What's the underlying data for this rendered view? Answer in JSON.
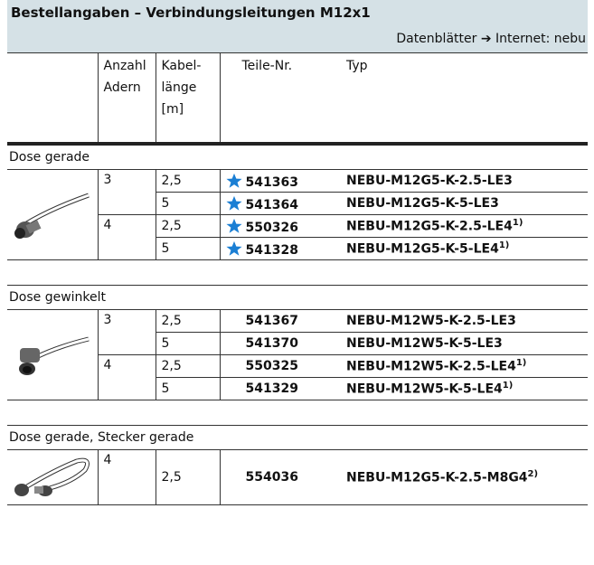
{
  "header": {
    "title": "Bestellangaben – Verbindungsleitungen M12x1",
    "note": "Datenblätter ➔ Internet: nebu"
  },
  "table": {
    "columns": [
      [
        "Anzahl",
        "Adern"
      ],
      [
        "Kabel-",
        "länge",
        "[m]"
      ],
      [
        "Teile-Nr."
      ],
      [
        "Typ"
      ]
    ],
    "sections": [
      {
        "title": "Dose gerade",
        "rows": [
          {
            "adern": "3",
            "laenge": "2,5",
            "star": true,
            "teile_nr": "541363",
            "typ": "NEBU-M12G5-K-2.5-LE3",
            "footnote": null
          },
          {
            "adern": null,
            "laenge": "5",
            "star": true,
            "teile_nr": "541364",
            "typ": "NEBU-M12G5-K-5-LE3",
            "footnote": null
          },
          {
            "adern": "4",
            "laenge": "2,5",
            "star": true,
            "teile_nr": "550326",
            "typ": "NEBU-M12G5-K-2.5-LE4",
            "footnote": "1)"
          },
          {
            "adern": null,
            "laenge": "5",
            "star": true,
            "teile_nr": "541328",
            "typ": "NEBU-M12G5-K-5-LE4",
            "footnote": "1)"
          }
        ]
      },
      {
        "title": "Dose gewinkelt",
        "rows": [
          {
            "adern": "3",
            "laenge": "2,5",
            "star": false,
            "teile_nr": "541367",
            "typ": "NEBU-M12W5-K-2.5-LE3",
            "footnote": null
          },
          {
            "adern": null,
            "laenge": "5",
            "star": false,
            "teile_nr": "541370",
            "typ": "NEBU-M12W5-K-5-LE3",
            "footnote": null
          },
          {
            "adern": "4",
            "laenge": "2,5",
            "star": false,
            "teile_nr": "550325",
            "typ": "NEBU-M12W5-K-2.5-LE4",
            "footnote": "1)"
          },
          {
            "adern": null,
            "laenge": "5",
            "star": false,
            "teile_nr": "541329",
            "typ": "NEBU-M12W5-K-5-LE4",
            "footnote": "1)"
          }
        ]
      },
      {
        "title": "Dose gerade, Stecker gerade",
        "rows": [
          {
            "adern": "4",
            "laenge": "2,5",
            "star": false,
            "teile_nr": "554036",
            "typ": "NEBU-M12G5-K-2.5-M8G4",
            "footnote": "2)"
          }
        ]
      }
    ]
  }
}
